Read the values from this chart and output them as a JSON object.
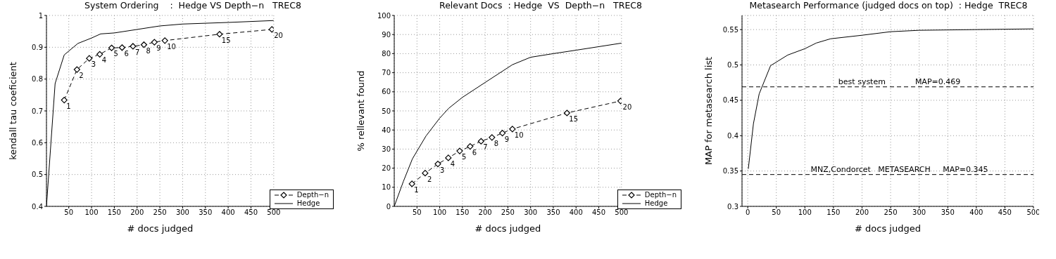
{
  "chart_data": [
    {
      "type": "line",
      "title": "System Ordering    :  Hedge VS Depth−n   TREC8",
      "xlabel": "# docs judged",
      "ylabel": "kendall tau coeficient",
      "xlim": [
        1,
        500
      ],
      "xticks": [
        50,
        100,
        150,
        200,
        250,
        300,
        350,
        400,
        450,
        500
      ],
      "ylim": [
        0.4,
        1
      ],
      "yticks": [
        0.4,
        0.5,
        0.6,
        0.7,
        0.8,
        0.9,
        1
      ],
      "grid": true,
      "legend": "bottom right",
      "series": [
        {
          "name": "Depth−n",
          "color": "#000000",
          "marker": "diamond",
          "line_style": "dashed",
          "x": [
            40,
            68,
            95,
            118,
            144,
            167,
            191,
            215,
            238,
            261,
            381,
            496
          ],
          "values": [
            0.734,
            0.83,
            0.865,
            0.878,
            0.898,
            0.899,
            0.903,
            0.908,
            0.916,
            0.921,
            0.941,
            0.956
          ]
        },
        {
          "name": "Hedge",
          "color": "#000000",
          "marker": "none",
          "line_style": "solid",
          "x": [
            1,
            20,
            40,
            70,
            100,
            120,
            150,
            200,
            250,
            300,
            400,
            500
          ],
          "values": [
            0.4,
            0.786,
            0.876,
            0.912,
            0.929,
            0.942,
            0.945,
            0.956,
            0.967,
            0.973,
            0.978,
            0.984
          ]
        }
      ],
      "annotations": [
        {
          "text": "1",
          "x": 40,
          "y": 0.734
        },
        {
          "text": "2",
          "x": 68,
          "y": 0.83
        },
        {
          "text": "3",
          "x": 95,
          "y": 0.865
        },
        {
          "text": "4",
          "x": 118,
          "y": 0.878
        },
        {
          "text": "5",
          "x": 144,
          "y": 0.898
        },
        {
          "text": "6",
          "x": 167,
          "y": 0.899
        },
        {
          "text": "7",
          "x": 191,
          "y": 0.903
        },
        {
          "text": "8",
          "x": 215,
          "y": 0.908
        },
        {
          "text": "9",
          "x": 238,
          "y": 0.916
        },
        {
          "text": "10",
          "x": 261,
          "y": 0.921
        },
        {
          "text": "15",
          "x": 381,
          "y": 0.941
        },
        {
          "text": "20",
          "x": 496,
          "y": 0.956
        }
      ]
    },
    {
      "type": "line",
      "title": "Relevant Docs  : Hedge  VS  Depth−n   TREC8",
      "xlabel": "# docs judged",
      "ylabel": "% rellevant found",
      "xlim": [
        0,
        500
      ],
      "xticks": [
        50,
        100,
        150,
        200,
        250,
        300,
        350,
        400,
        450,
        500
      ],
      "ylim": [
        0,
        100
      ],
      "yticks": [
        0,
        10,
        20,
        30,
        40,
        50,
        60,
        70,
        80,
        90,
        100
      ],
      "grid": true,
      "legend": "bottom right",
      "series": [
        {
          "name": "Depth−n",
          "color": "#000000",
          "marker": "diamond",
          "line_style": "dashed",
          "x": [
            39,
            68,
            96,
            119,
            144,
            167,
            191,
            215,
            238,
            260,
            380,
            498
          ],
          "values": [
            11.8,
            17.4,
            22.2,
            25.4,
            29,
            31.4,
            34.1,
            36.1,
            38.4,
            40.5,
            48.9,
            55.2
          ]
        },
        {
          "name": "Hedge",
          "color": "#000000",
          "marker": "none",
          "line_style": "solid",
          "x": [
            0,
            20,
            40,
            70,
            100,
            120,
            150,
            200,
            260,
            300,
            350,
            400,
            500
          ],
          "values": [
            0,
            13,
            24.9,
            36.9,
            46.2,
            51.4,
            57.1,
            64.9,
            74.2,
            78.1,
            80,
            81.8,
            85.5
          ]
        }
      ],
      "annotations": [
        {
          "text": "1",
          "x": 39,
          "y": 11.8
        },
        {
          "text": "2",
          "x": 68,
          "y": 17.4
        },
        {
          "text": "3",
          "x": 96,
          "y": 22.2
        },
        {
          "text": "4",
          "x": 119,
          "y": 25.4
        },
        {
          "text": "5",
          "x": 144,
          "y": 29
        },
        {
          "text": "6",
          "x": 167,
          "y": 31.4
        },
        {
          "text": "7",
          "x": 191,
          "y": 34.1
        },
        {
          "text": "8",
          "x": 215,
          "y": 36.1
        },
        {
          "text": "9",
          "x": 238,
          "y": 38.4
        },
        {
          "text": "10",
          "x": 260,
          "y": 40.5
        },
        {
          "text": "15",
          "x": 380,
          "y": 48.9
        },
        {
          "text": "20",
          "x": 498,
          "y": 55.2
        }
      ]
    },
    {
      "type": "line",
      "title": "Metasearch Performance (judged docs on top)  : Hedge  TREC8",
      "xlabel": "# docs judged",
      "ylabel": "MAP for metasearch list",
      "xlim": [
        -10,
        500
      ],
      "xticks": [
        0,
        50,
        100,
        150,
        200,
        250,
        300,
        350,
        400,
        450,
        500
      ],
      "ylim": [
        0.3,
        0.57
      ],
      "yticks": [
        0.3,
        0.35,
        0.4,
        0.45,
        0.5,
        0.55
      ],
      "grid": true,
      "series": [
        {
          "color": "#000000",
          "marker": "none",
          "line_style": "solid",
          "x": [
            1,
            10,
            20,
            40,
            70,
            100,
            120,
            145,
            200,
            250,
            300,
            400,
            500
          ],
          "values": [
            0.353,
            0.417,
            0.459,
            0.499,
            0.514,
            0.523,
            0.531,
            0.537,
            0.542,
            0.547,
            0.549,
            0.55,
            0.551
          ]
        }
      ],
      "ref_lines": [
        {
          "axis": "y",
          "value": 0.469,
          "label": "best system            MAP=0.469",
          "line_style": "dashed",
          "color": "#000000"
        },
        {
          "axis": "y",
          "value": 0.345,
          "label": "MNZ,Condorcet   METASEARCH     MAP=0.345",
          "line_style": "dashed",
          "color": "#000000"
        }
      ]
    }
  ]
}
